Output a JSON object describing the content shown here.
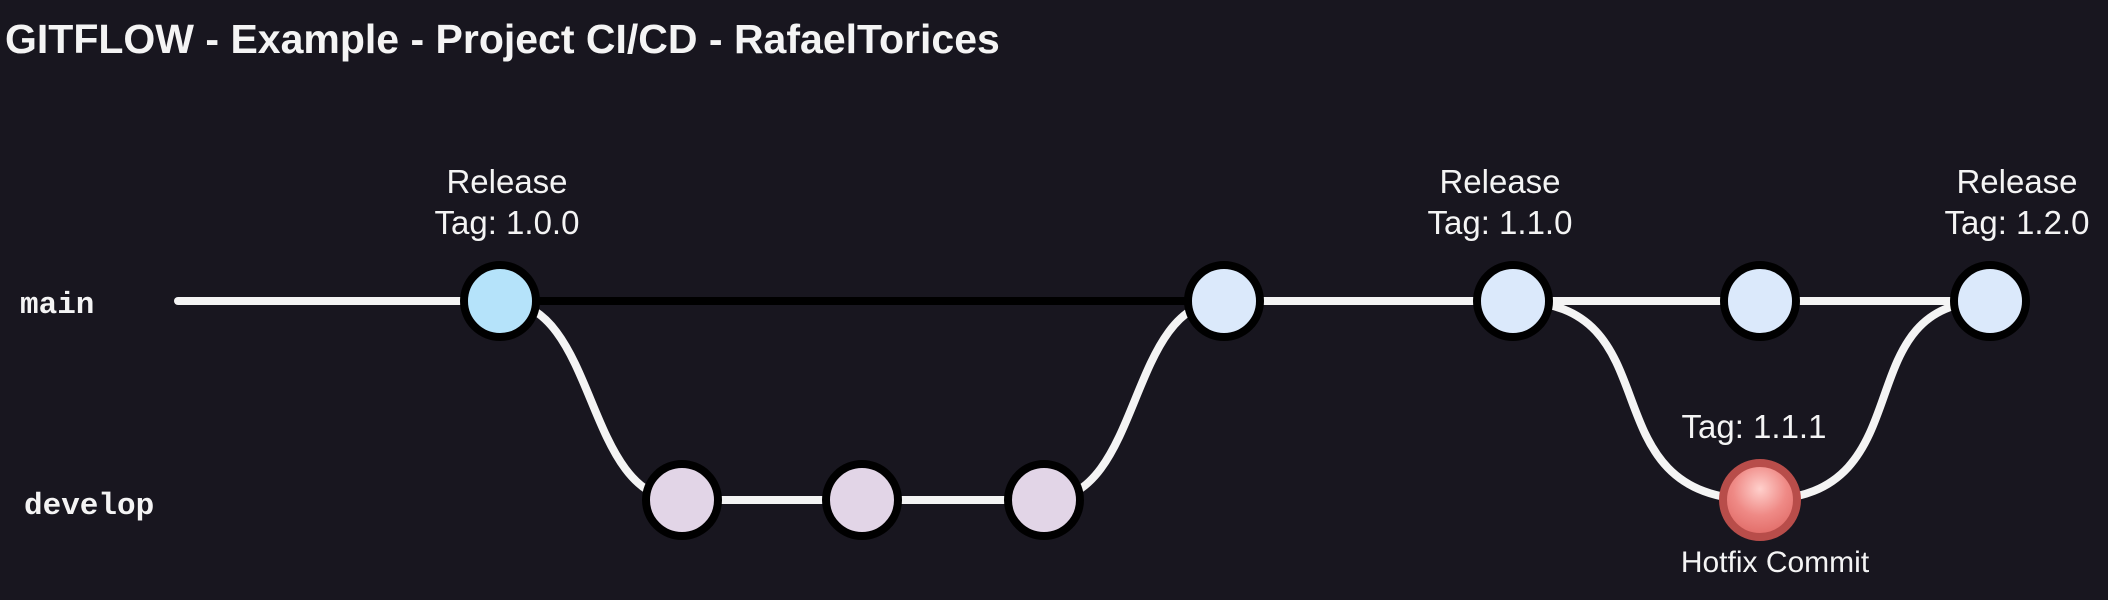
{
  "title": "GITFLOW - Example - Project CI/CD - RafaelTorices",
  "branches": {
    "main": "main",
    "develop": "develop"
  },
  "commits": {
    "release_100": {
      "line1": "Release",
      "line2": "Tag: 1.0.0"
    },
    "release_110": {
      "line1": "Release",
      "line2": "Tag: 1.1.0"
    },
    "release_120": {
      "line1": "Release",
      "line2": "Tag: 1.2.0"
    },
    "hotfix": {
      "tag": "Tag: 1.1.1",
      "caption": "Hotfix Commit"
    }
  },
  "colors": {
    "background": "#18161f",
    "line": "#f4f4f4",
    "main_line_idle": "#000000",
    "commit_outline": "#000000",
    "main_release_first": "#b5e3fa",
    "main_commit": "#dbe9fb",
    "develop_commit": "#e2d5e7",
    "hotfix_commit": "#ee7b78",
    "hotfix_outline": "#b84d4a"
  }
}
